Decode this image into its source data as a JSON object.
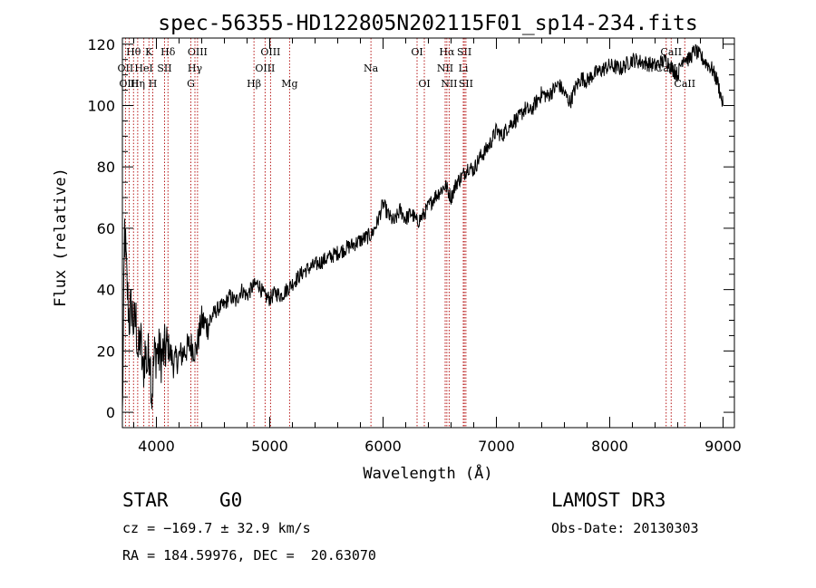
{
  "chart_data": {
    "type": "line",
    "title": "spec-56355-HD122805N202115F01_sp14-234.fits",
    "xlabel": "Wavelength (Å)",
    "ylabel": "Flux (relative)",
    "xlim": [
      3700,
      9100
    ],
    "ylim": [
      -5,
      122
    ],
    "xticks": [
      4000,
      5000,
      6000,
      7000,
      8000,
      9000
    ],
    "yticks": [
      0,
      20,
      40,
      60,
      80,
      100,
      120
    ],
    "grid": false,
    "series": [
      {
        "name": "flux",
        "x": [
          3700,
          3720,
          3740,
          3760,
          3780,
          3800,
          3820,
          3840,
          3860,
          3880,
          3900,
          3920,
          3940,
          3960,
          3980,
          4000,
          4050,
          4100,
          4150,
          4200,
          4250,
          4300,
          4350,
          4400,
          4450,
          4500,
          4550,
          4600,
          4650,
          4700,
          4750,
          4800,
          4850,
          4900,
          4950,
          5000,
          5050,
          5100,
          5150,
          5200,
          5300,
          5400,
          5500,
          5600,
          5700,
          5800,
          5900,
          5950,
          6000,
          6050,
          6100,
          6150,
          6200,
          6250,
          6300,
          6350,
          6400,
          6450,
          6500,
          6550,
          6600,
          6650,
          6700,
          6750,
          6800,
          6850,
          6900,
          6950,
          7000,
          7050,
          7100,
          7150,
          7200,
          7250,
          7300,
          7350,
          7400,
          7450,
          7500,
          7550,
          7600,
          7650,
          7700,
          7750,
          7800,
          7850,
          7900,
          7950,
          8000,
          8100,
          8200,
          8300,
          8400,
          8500,
          8550,
          8600,
          8650,
          8700,
          8750,
          8800,
          8850,
          8900,
          8950,
          9000
        ],
        "y": [
          -2,
          60,
          42,
          30,
          35,
          28,
          30,
          18,
          25,
          12,
          20,
          15,
          22,
          5,
          18,
          20,
          18,
          22,
          16,
          18,
          20,
          22,
          20,
          30,
          28,
          32,
          34,
          35,
          38,
          36,
          40,
          38,
          41,
          42,
          38,
          37,
          39,
          38,
          40,
          42,
          46,
          48,
          50,
          52,
          54,
          56,
          58,
          62,
          68,
          64,
          62,
          66,
          63,
          65,
          62,
          64,
          67,
          70,
          72,
          74,
          70,
          75,
          77,
          80,
          79,
          83,
          85,
          88,
          92,
          90,
          93,
          95,
          96,
          99,
          98,
          101,
          104,
          103,
          105,
          107,
          104,
          101,
          106,
          109,
          108,
          110,
          111,
          112,
          113,
          112,
          115,
          114,
          113,
          115,
          112,
          110,
          116,
          115,
          118,
          116,
          114,
          112,
          108,
          100
        ]
      }
    ],
    "line_markers": [
      {
        "label": "Hθ",
        "x": 3798,
        "row": 1
      },
      {
        "label": "K",
        "x": 3934,
        "row": 1
      },
      {
        "label": "Hδ",
        "x": 4102,
        "row": 1
      },
      {
        "label": "OIII",
        "x": 4363,
        "row": 1
      },
      {
        "label": "OIII",
        "x": 5007,
        "row": 1
      },
      {
        "label": "OI",
        "x": 6300,
        "row": 1
      },
      {
        "label": "Hα",
        "x": 6563,
        "row": 1
      },
      {
        "label": "SII",
        "x": 6717,
        "row": 1
      },
      {
        "label": "CaII",
        "x": 8542,
        "row": 1
      },
      {
        "label": "OII",
        "x": 3727,
        "row": 2
      },
      {
        "label": "HeI",
        "x": 3889,
        "row": 2
      },
      {
        "label": "SII",
        "x": 4072,
        "row": 2
      },
      {
        "label": "Hγ",
        "x": 4340,
        "row": 2
      },
      {
        "label": "OIII",
        "x": 4959,
        "row": 2
      },
      {
        "label": "Na",
        "x": 5893,
        "row": 2
      },
      {
        "label": "NII",
        "x": 6548,
        "row": 2
      },
      {
        "label": "Li",
        "x": 6708,
        "row": 2
      },
      {
        "label": "CaII",
        "x": 8498,
        "row": 2
      },
      {
        "label": "OIII",
        "x": 3759,
        "row": 3
      },
      {
        "label": "Hη",
        "x": 3835,
        "row": 3
      },
      {
        "label": "H",
        "x": 3968,
        "row": 3
      },
      {
        "label": "G",
        "x": 4304,
        "row": 3
      },
      {
        "label": "Hβ",
        "x": 4861,
        "row": 3
      },
      {
        "label": "Mg",
        "x": 5175,
        "row": 3
      },
      {
        "label": "OI",
        "x": 6364,
        "row": 3
      },
      {
        "label": "NII",
        "x": 6583,
        "row": 3
      },
      {
        "label": "SII",
        "x": 6731,
        "row": 3
      },
      {
        "label": "CaII",
        "x": 8662,
        "row": 3
      }
    ]
  },
  "info": {
    "object_class": "STAR",
    "subclass": "G0",
    "survey": "LAMOST DR3",
    "cz": "cz = −169.7 ± 32.9 km/s",
    "obs_date": "Obs-Date: 20130303",
    "coords": "RA = 184.59976, DEC =  20.63070"
  }
}
